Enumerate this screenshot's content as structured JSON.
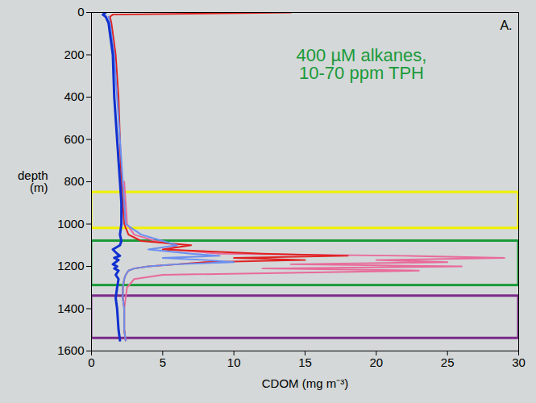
{
  "chart_data": {
    "type": "line",
    "panel_label": "A.",
    "xlabel": "CDOM (mg m⁻³)",
    "ylabel": "depth (m)",
    "xlim": [
      0,
      30
    ],
    "xticks": [
      0,
      5,
      10,
      15,
      20,
      25,
      30
    ],
    "ylim": [
      1600,
      0
    ],
    "yticks": [
      0,
      200,
      400,
      600,
      800,
      1000,
      1200,
      1400,
      1600
    ],
    "y": [
      0,
      10,
      20,
      50,
      100,
      200,
      400,
      600,
      800,
      900,
      1000,
      1050,
      1080,
      1100,
      1120,
      1140,
      1150,
      1160,
      1170,
      1180,
      1190,
      1200,
      1210,
      1220,
      1240,
      1260,
      1300,
      1350,
      1400,
      1500,
      1550
    ],
    "series": [
      {
        "color": "#e86a9a",
        "values": [
          null,
          null,
          null,
          null,
          null,
          null,
          null,
          null,
          2.3,
          2.4,
          2.5,
          3.0,
          4.5,
          6.0,
          5.5,
          9.0,
          22.0,
          29.0,
          20.0,
          25.0,
          14.0,
          26.0,
          12.0,
          23.0,
          5.0,
          3.0,
          2.5,
          2.4,
          2.3,
          2.3,
          2.4
        ]
      },
      {
        "color": "#e02020",
        "values": [
          14.0,
          1.5,
          1.3,
          1.4,
          1.5,
          1.7,
          1.9,
          2.0,
          2.1,
          2.2,
          2.3,
          2.6,
          3.5,
          7.0,
          5.0,
          12.0,
          18.0,
          10.0,
          15.0,
          8.0,
          6.0,
          4.0,
          3.0,
          2.6,
          2.4,
          2.3,
          2.2,
          2.2,
          2.3,
          2.3,
          2.4
        ]
      },
      {
        "color": "#6a8ff0",
        "values": [
          null,
          null,
          1.2,
          1.3,
          1.4,
          1.6,
          1.8,
          2.0,
          2.2,
          2.3,
          2.4,
          3.5,
          5.0,
          6.0,
          4.0,
          7.0,
          9.0,
          5.0,
          8.0,
          10.0,
          6.0,
          4.0,
          3.0,
          2.6,
          2.4,
          2.3,
          2.2,
          2.2,
          2.3,
          2.3,
          2.4
        ]
      },
      {
        "color": "#1030d0",
        "values": [
          1.0,
          0.8,
          1.0,
          1.2,
          1.3,
          1.5,
          1.6,
          1.8,
          2.0,
          2.1,
          2.1,
          2.0,
          2.1,
          2.0,
          1.5,
          1.8,
          2.0,
          1.6,
          1.9,
          1.7,
          1.5,
          1.8,
          1.6,
          1.9,
          1.7,
          1.9,
          1.8,
          1.7,
          1.8,
          1.9,
          2.0
        ]
      }
    ],
    "depth_ranges": [
      {
        "color": "#f0f000",
        "ylim": [
          850,
          1020
        ]
      },
      {
        "color": "#1a9a3a",
        "ylim": [
          1080,
          1290
        ]
      },
      {
        "color": "#7a2a8a",
        "ylim": [
          1340,
          1540
        ]
      }
    ],
    "annotation": {
      "text": "400 µM alkanes, 10-70 ppm TPH",
      "color": "#1a9a3a"
    }
  }
}
